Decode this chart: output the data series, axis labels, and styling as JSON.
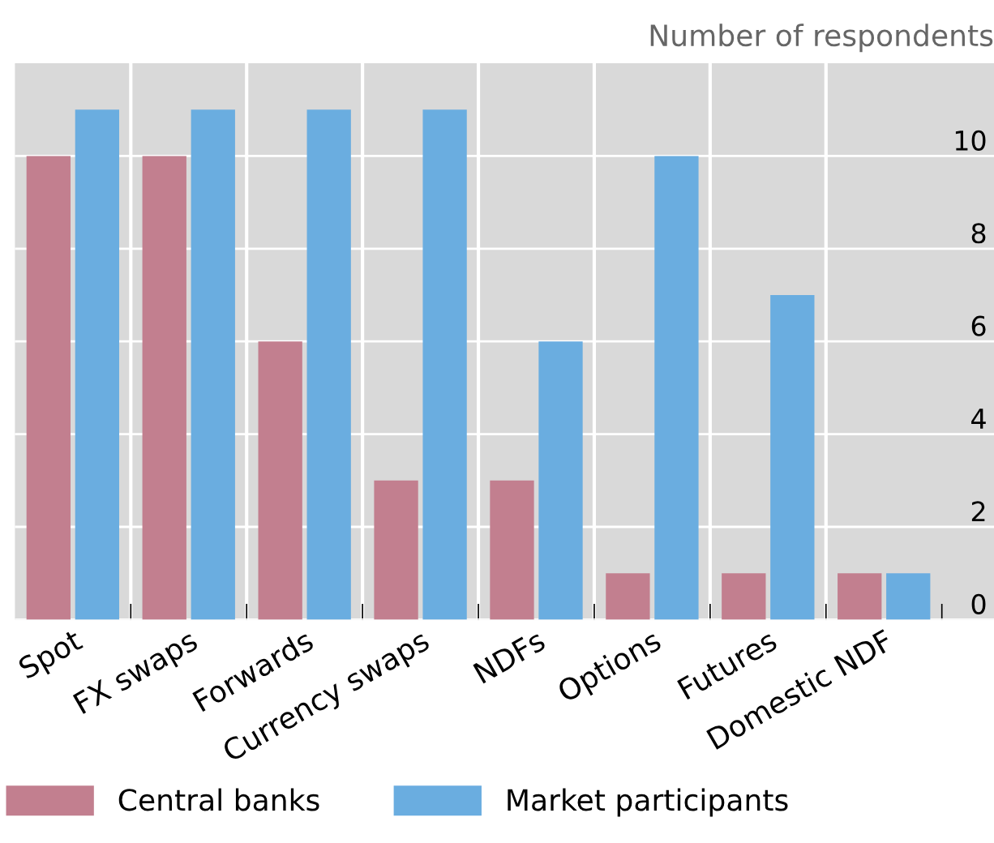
{
  "chart_data": {
    "type": "bar",
    "ylabel": "Number of respondents",
    "categories": [
      "Spot",
      "FX swaps",
      "Forwards",
      "Currency swaps",
      "NDFs",
      "Options",
      "Futures",
      "Domestic NDF"
    ],
    "series": [
      {
        "name": "Central banks",
        "color": "#c27f8f",
        "values": [
          10,
          10,
          6,
          3,
          3,
          1,
          1,
          1
        ]
      },
      {
        "name": "Market participants",
        "color": "#6aade0",
        "values": [
          11,
          11,
          11,
          11,
          6,
          10,
          7,
          1
        ]
      }
    ],
    "ylim": [
      0,
      12
    ],
    "yticks": [
      0,
      2,
      4,
      6,
      8,
      10
    ],
    "grid": true,
    "legend": "bottom"
  }
}
